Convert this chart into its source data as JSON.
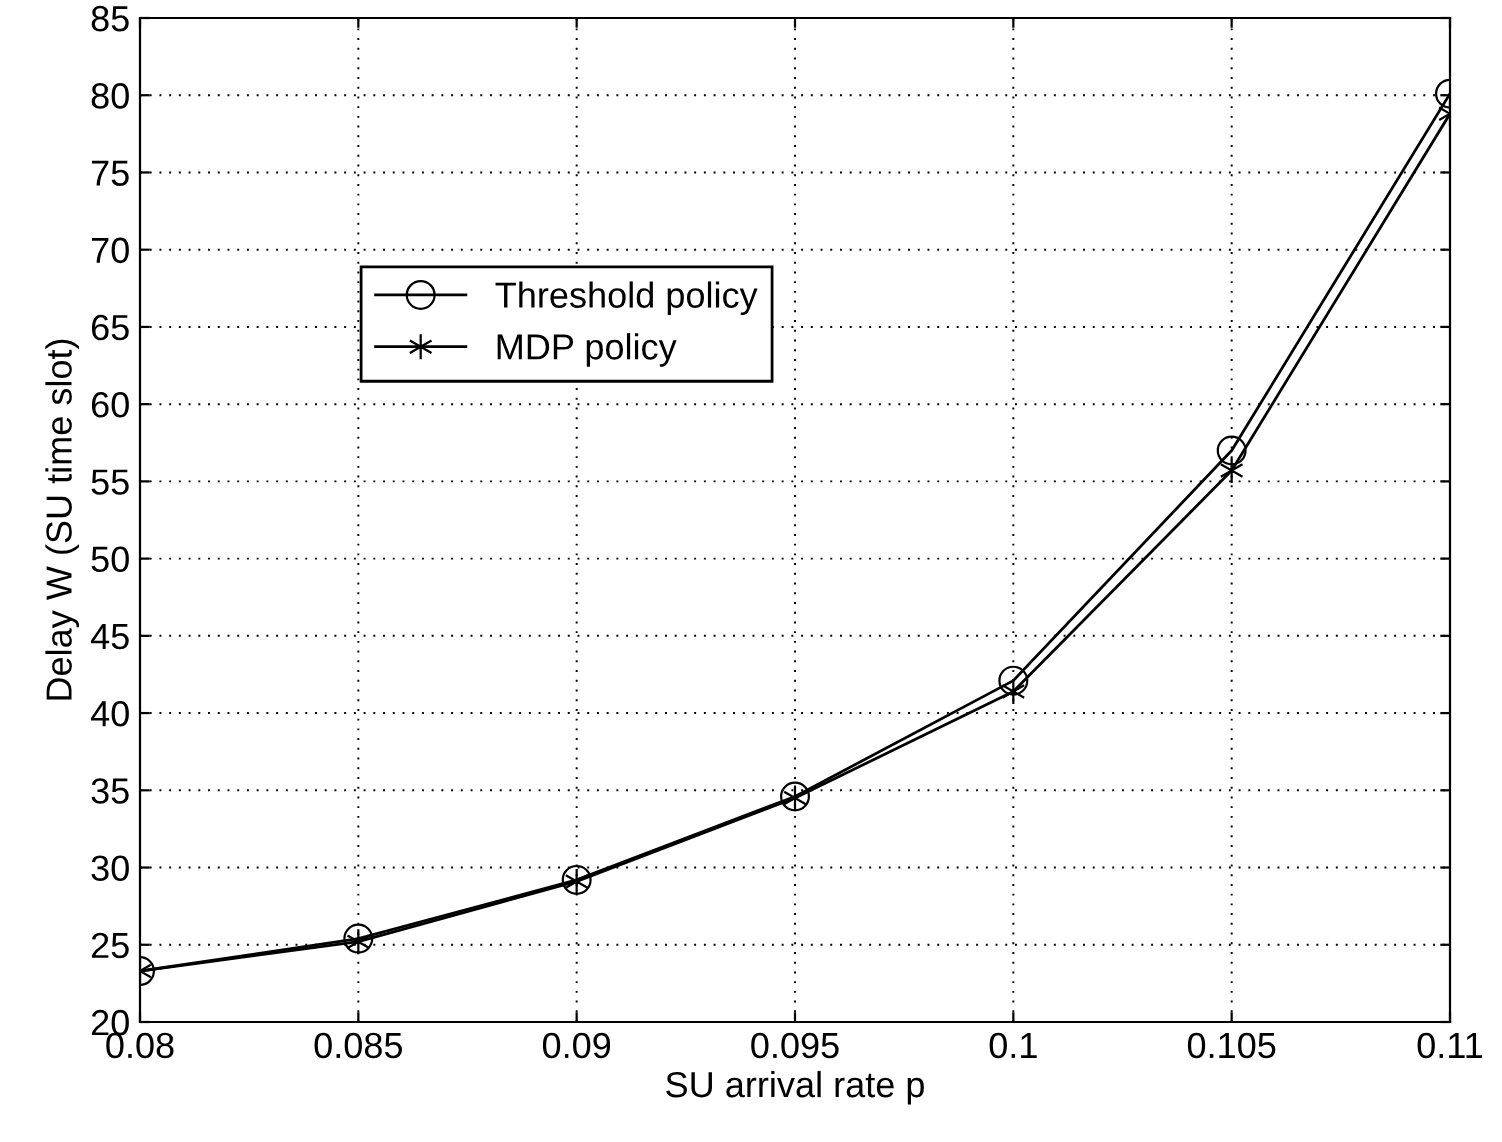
{
  "chart_data": {
    "type": "line",
    "xlabel": "SU arrival rate p",
    "ylabel": "Delay W (SU time slot)",
    "x": [
      0.08,
      0.085,
      0.09,
      0.095,
      0.1,
      0.105,
      0.11
    ],
    "series": [
      {
        "name": "Threshold policy",
        "color": "#000000",
        "marker": "circle",
        "values": [
          23.3,
          25.4,
          29.2,
          34.6,
          42.1,
          57.0,
          80.1
        ]
      },
      {
        "name": "MDP policy",
        "color": "#000000",
        "marker": "cross",
        "values": [
          23.3,
          25.2,
          29.1,
          34.5,
          41.4,
          55.7,
          78.8
        ]
      }
    ],
    "xlim": [
      0.08,
      0.11
    ],
    "xticks": [
      0.08,
      0.085,
      0.09,
      0.095,
      0.1,
      0.105,
      0.11
    ],
    "ylim": [
      20,
      85
    ],
    "yticks": [
      20,
      25,
      30,
      35,
      40,
      45,
      50,
      55,
      60,
      65,
      70,
      75,
      80,
      85
    ],
    "grid": true,
    "legend": "top left",
    "line_style": "solid"
  }
}
